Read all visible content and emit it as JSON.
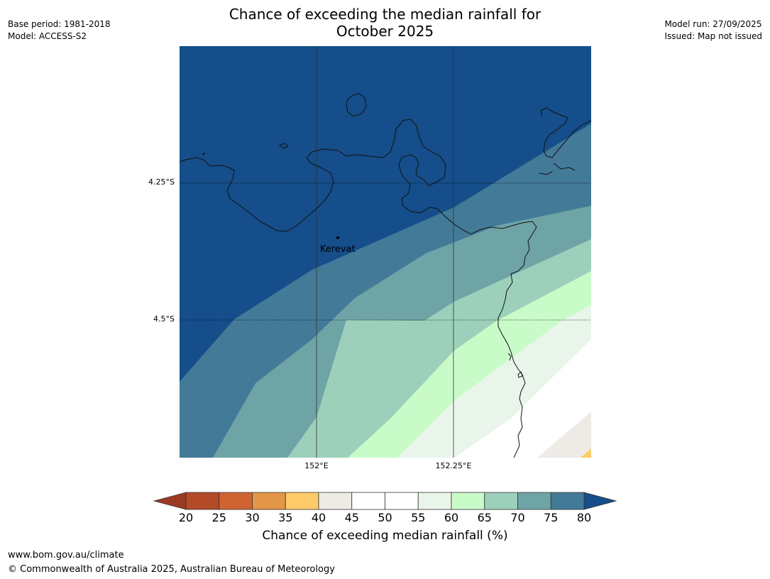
{
  "header": {
    "title_line1": "Chance of exceeding the median rainfall for",
    "title_line2": "October 2025",
    "base_period": "Base period: 1981-2018",
    "model": "Model: ACCESS-S2",
    "model_run": "Model run: 27/09/2025",
    "issued": "Issued: Map not issued"
  },
  "map": {
    "lat_labels": [
      "4.25°S",
      "4.5°S"
    ],
    "lon_labels": [
      "152°E",
      "152.25°E"
    ],
    "place": {
      "name": "Kerevat"
    },
    "bands": [
      {
        "range": "80+",
        "color": "#154e8a"
      },
      {
        "range": "75-80",
        "color": "#437a98"
      },
      {
        "range": "70-75",
        "color": "#6fa4a6"
      },
      {
        "range": "65-70",
        "color": "#9dd0bb"
      },
      {
        "range": "60-65",
        "color": "#c9fbc9"
      },
      {
        "range": "55-60",
        "color": "#e9f5ea"
      },
      {
        "range": "45-55",
        "color": "#ffffff"
      },
      {
        "range": "40-45",
        "color": "#eeebe6"
      },
      {
        "range": "35-40",
        "color": "#fdcb6a"
      }
    ]
  },
  "colorbar": {
    "ticks": [
      "20",
      "25",
      "30",
      "35",
      "40",
      "45",
      "50",
      "55",
      "60",
      "65",
      "70",
      "75",
      "80"
    ],
    "colors": [
      "#b34a28",
      "#cf6432",
      "#e39648",
      "#fdcb6a",
      "#eeebe6",
      "#ffffff",
      "#ffffff",
      "#e9f5ea",
      "#c9fbc9",
      "#9dd0bb",
      "#6fa4a6",
      "#437a98"
    ],
    "low_extend_color": "#9b3a22",
    "high_extend_color": "#154e8a",
    "label": "Chance of exceeding median rainfall (%)"
  },
  "footer": {
    "url": "www.bom.gov.au/climate",
    "copyright": "© Commonwealth of Australia 2025, Australian Bureau of Meteorology"
  }
}
